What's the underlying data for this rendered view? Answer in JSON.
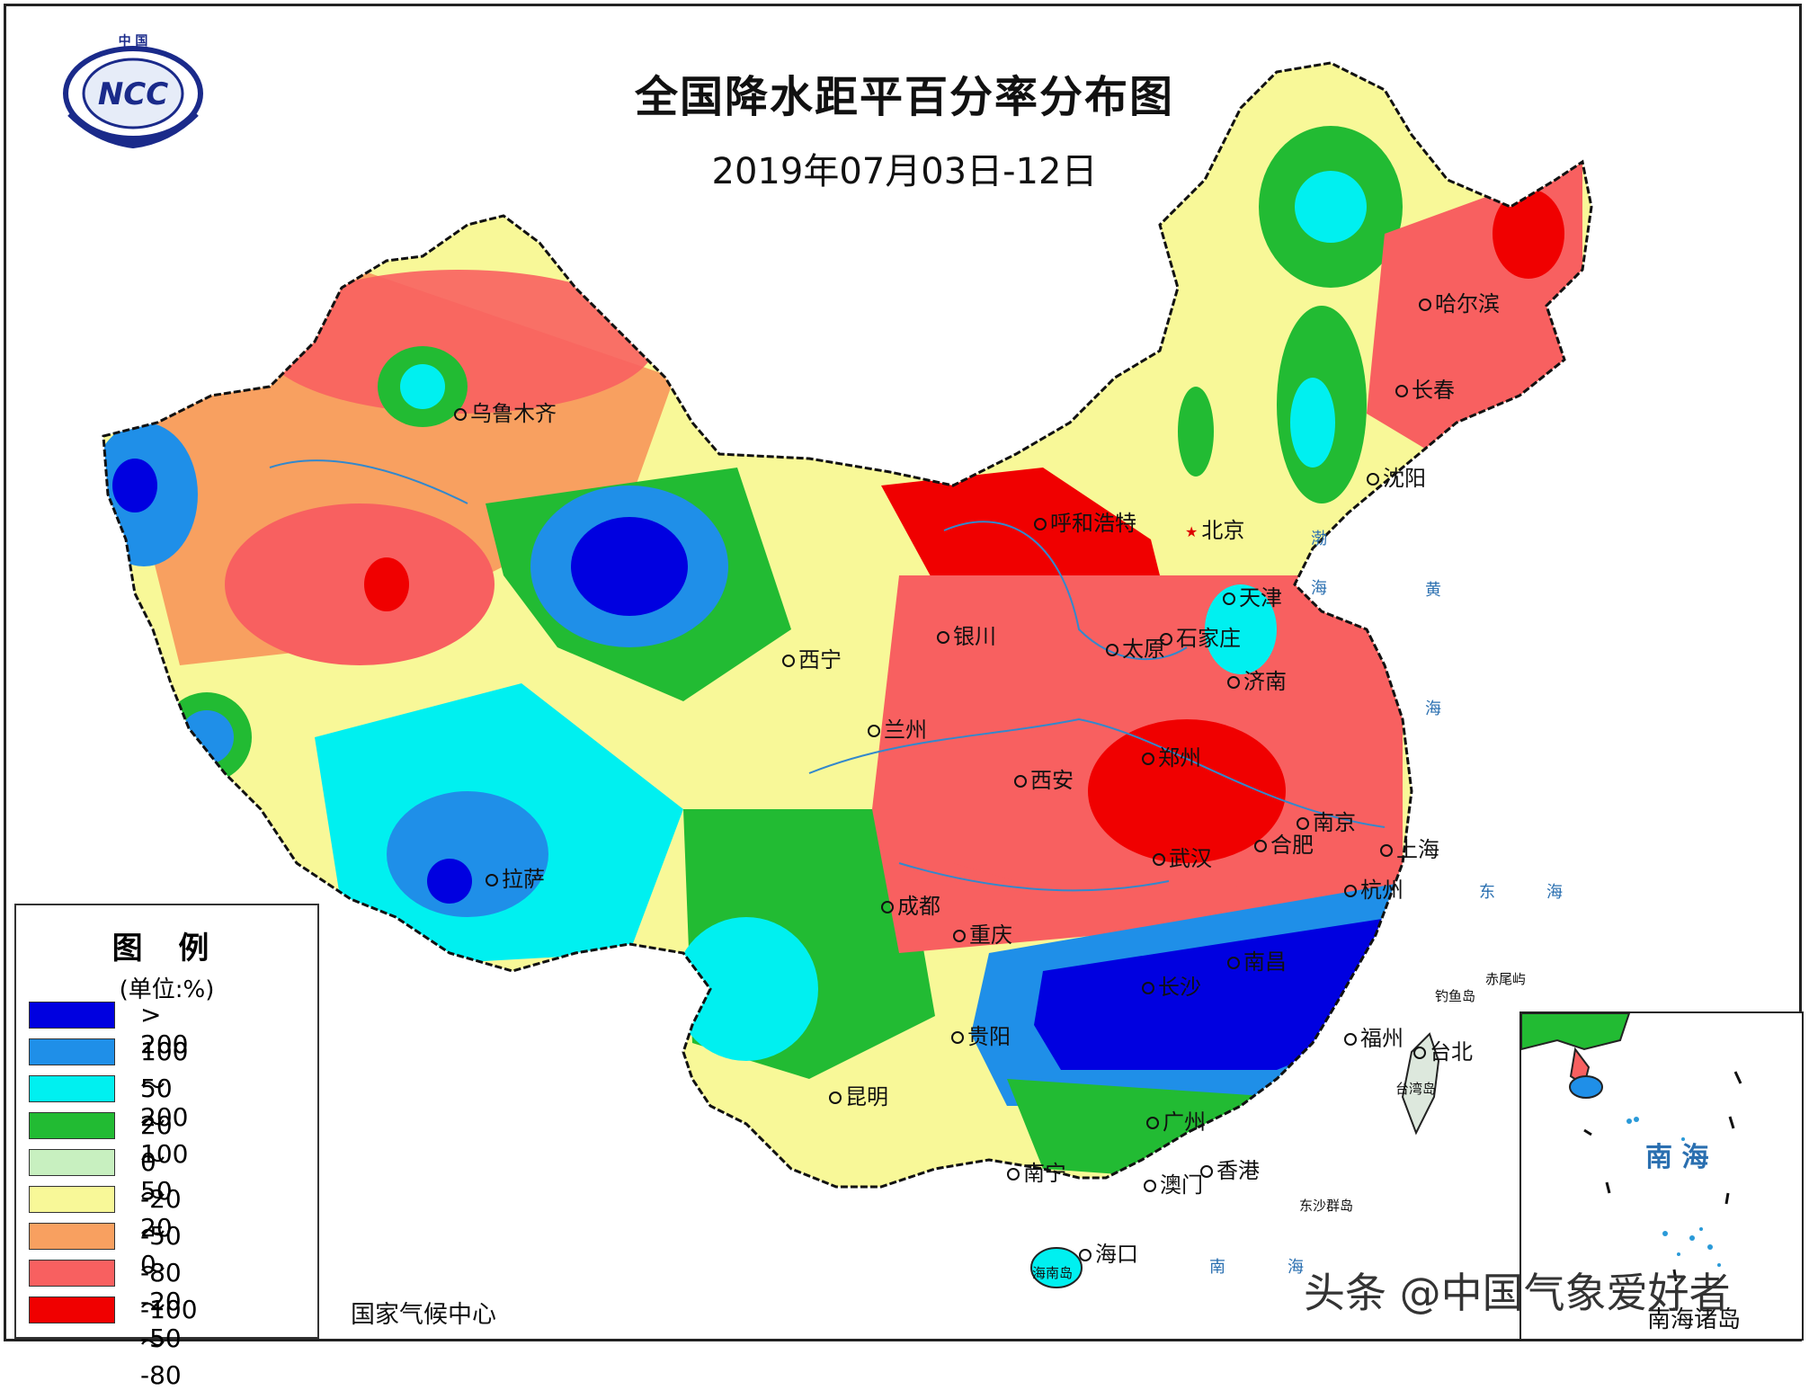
{
  "title": "全国降水距平百分率分布图",
  "subtitle": "2019年07月03日-12日",
  "logo": {
    "text": "NCC",
    "top_text": "中 国"
  },
  "credit": "国家气候中心",
  "watermark": "头条 @中国气象爱好者",
  "legend": {
    "title": "图 例",
    "unit": "(单位:%)",
    "items": [
      {
        "label": "> 200",
        "color": "#0000e0"
      },
      {
        "label": "100 ～ 200",
        "color": "#1f8fe8"
      },
      {
        "label": "50 ～ 100",
        "color": "#00f0f0"
      },
      {
        "label": "20 ～ 50",
        "color": "#22bb33"
      },
      {
        "label": "0 ～ 20",
        "color": "#c8f0c0"
      },
      {
        "label": "-20 ～ 0",
        "color": "#f8f898"
      },
      {
        "label": "-50 ～ -20",
        "color": "#f8a060"
      },
      {
        "label": "-80 ～ -50",
        "color": "#f86060"
      },
      {
        "label": "-100 ～ -80",
        "color": "#f00000"
      }
    ]
  },
  "cities": [
    {
      "name": "乌鲁木齐"
    },
    {
      "name": "哈尔滨"
    },
    {
      "name": "长春"
    },
    {
      "name": "沈阳"
    },
    {
      "name": "呼和浩特"
    },
    {
      "name": "北京"
    },
    {
      "name": "天津"
    },
    {
      "name": "石家庄"
    },
    {
      "name": "太原"
    },
    {
      "name": "银川"
    },
    {
      "name": "西宁"
    },
    {
      "name": "兰州"
    },
    {
      "name": "济南"
    },
    {
      "name": "郑州"
    },
    {
      "name": "西安"
    },
    {
      "name": "南京"
    },
    {
      "name": "合肥"
    },
    {
      "name": "上海"
    },
    {
      "name": "武汉"
    },
    {
      "name": "杭州"
    },
    {
      "name": "拉萨"
    },
    {
      "name": "成都"
    },
    {
      "name": "重庆"
    },
    {
      "name": "南昌"
    },
    {
      "name": "长沙"
    },
    {
      "name": "福州"
    },
    {
      "name": "台北"
    },
    {
      "name": "贵阳"
    },
    {
      "name": "昆明"
    },
    {
      "name": "广州"
    },
    {
      "name": "南宁"
    },
    {
      "name": "澳门"
    },
    {
      "name": "香港"
    },
    {
      "name": "海口"
    }
  ],
  "seas": {
    "bohai": "渤",
    "bohai2": "海",
    "huang": "黄",
    "huang2": "海",
    "dong": "东",
    "dong2": "海",
    "nan": "南",
    "nan2": "海",
    "inset_nan": "南 海"
  },
  "islands": {
    "chiwei": "赤尾屿",
    "diaoyu": "钓鱼岛",
    "taiwan": "台湾岛",
    "dongsha": "东沙群岛",
    "hainan": "海南岛",
    "nanhai": "南海诸岛"
  }
}
